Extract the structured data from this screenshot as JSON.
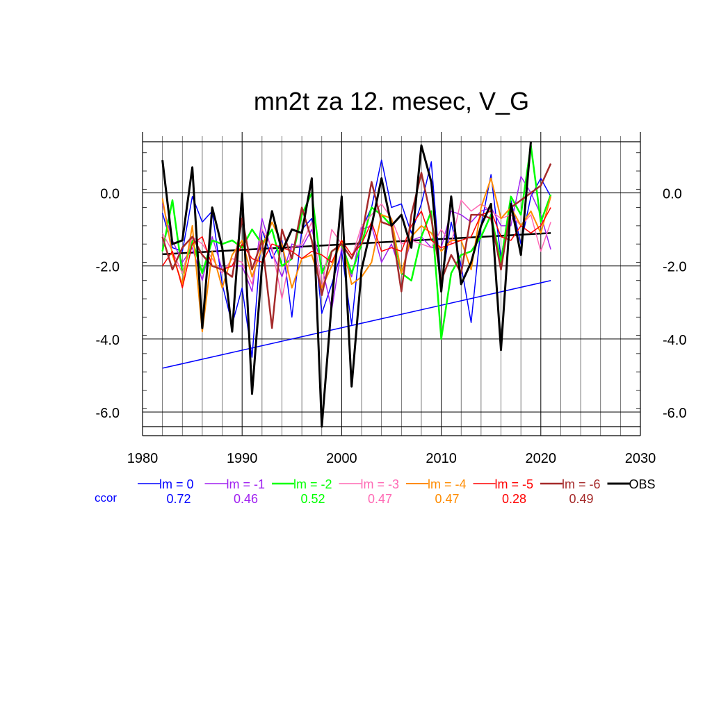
{
  "chart_data": {
    "type": "line",
    "title": "mn2t za 12. mesec, V_G",
    "xlabel": "",
    "ylabel": "",
    "xlim": [
      1980,
      2030
    ],
    "ylim": [
      -6.4,
      1.4
    ],
    "x_ticks": [
      1980,
      1990,
      2000,
      2010,
      2020,
      2030
    ],
    "x_tick_labels": [
      "1980",
      "1990",
      "2000",
      "2010",
      "2020",
      "2030"
    ],
    "y_ticks": [
      0,
      -2,
      -4,
      -6
    ],
    "y_tick_labels": [
      "0.0",
      "-2.0",
      "-4.0",
      "-6.0"
    ],
    "grid": "vertical minor lines at every year, horizontal at major ticks",
    "legend_position": "bottom",
    "ccor_label": "ccor",
    "x": [
      1982,
      1983,
      1984,
      1985,
      1986,
      1987,
      1988,
      1989,
      1990,
      1991,
      1992,
      1993,
      1994,
      1995,
      1996,
      1997,
      1998,
      1999,
      2000,
      2001,
      2002,
      2003,
      2004,
      2005,
      2006,
      2007,
      2008,
      2009,
      2010,
      2011,
      2012,
      2013,
      2014,
      2015,
      2016,
      2017,
      2018,
      2019,
      2020,
      2021
    ],
    "series": [
      {
        "name": "lm = 0",
        "color": "#0000ff",
        "width": 1.5,
        "ccor": "0.72",
        "values": [
          -0.55,
          -1.5,
          -1.6,
          -0.1,
          -0.8,
          -0.5,
          -2.5,
          -3.6,
          -2.6,
          -4.5,
          -1.0,
          -1.8,
          -1.3,
          -3.4,
          -1.0,
          -0.7,
          -3.3,
          -2.5,
          -1.6,
          -3.6,
          -1.0,
          -0.4,
          0.9,
          -0.4,
          -0.3,
          -1.1,
          -0.3,
          0.85,
          -2.5,
          -0.8,
          -2.0,
          -3.55,
          -0.9,
          0.5,
          -1.8,
          -0.2,
          -1.4,
          -0.1,
          0.4,
          -0.1
        ]
      },
      {
        "name": "lm = -1",
        "color": "#a020f0",
        "width": 1.5,
        "ccor": "0.46",
        "values": [
          -0.3,
          -1.3,
          -1.9,
          -1.5,
          -2.4,
          -1.2,
          -2.1,
          -2.0,
          -2.0,
          -2.7,
          -0.7,
          -1.6,
          -2.3,
          -1.4,
          -1.5,
          -1.0,
          -2.0,
          -3.2,
          -1.5,
          -2.3,
          -1.0,
          -0.9,
          -1.9,
          -1.4,
          -2.2,
          -1.3,
          -1.2,
          -1.5,
          -1.5,
          -0.5,
          -0.6,
          -0.8,
          -0.5,
          -0.4,
          -0.9,
          -0.9,
          0.45,
          0.0,
          -0.6,
          -1.55
        ]
      },
      {
        "name": "lm = -2",
        "color": "#00ff00",
        "width": 2.5,
        "ccor": "0.52",
        "values": [
          -1.6,
          -0.2,
          -2.2,
          -1.3,
          -2.2,
          -1.3,
          -1.4,
          -1.3,
          -1.5,
          -1.0,
          -1.4,
          -1.0,
          -2.0,
          -1.8,
          -0.6,
          0.0,
          -2.2,
          -1.6,
          -1.4,
          -2.2,
          -1.4,
          -0.4,
          -0.6,
          -0.9,
          -2.2,
          -2.4,
          -1.2,
          -0.5,
          -4.0,
          -2.2,
          -1.7,
          -1.6,
          -1.2,
          -0.6,
          -1.9,
          -0.1,
          -0.6,
          1.3,
          -0.8,
          -0.05
        ]
      },
      {
        "name": "lm = -3",
        "color": "#ff69b4",
        "width": 1.5,
        "ccor": "0.47",
        "values": [
          -1.1,
          -1.6,
          -2.2,
          -1.2,
          -1.4,
          -1.8,
          -2.2,
          -1.8,
          -1.9,
          -2.5,
          -1.0,
          -1.5,
          -2.9,
          -1.5,
          -1.4,
          -0.8,
          -2.6,
          -1.0,
          -1.4,
          -1.8,
          -0.9,
          -0.6,
          -0.3,
          -0.7,
          -1.4,
          -1.3,
          -1.4,
          -1.5,
          -1.0,
          -1.4,
          -0.2,
          -0.5,
          -0.3,
          -0.5,
          -0.7,
          -0.6,
          -0.9,
          -0.6,
          -1.6,
          -0.8
        ]
      },
      {
        "name": "lm = -4",
        "color": "#ff8c00",
        "width": 2.0,
        "ccor": "0.47",
        "values": [
          -0.15,
          -1.7,
          -2.5,
          -0.9,
          -3.8,
          -1.6,
          -2.6,
          -1.7,
          -1.3,
          -2.3,
          -1.5,
          -0.8,
          -1.4,
          -2.6,
          -1.8,
          -1.7,
          -2.6,
          -2.0,
          -1.3,
          -2.5,
          -2.3,
          -1.9,
          -0.6,
          -0.7,
          -2.2,
          -1.2,
          -0.9,
          -1.1,
          -1.6,
          -1.3,
          -1.3,
          -2.1,
          -0.4,
          0.4,
          -0.7,
          -0.4,
          -0.9,
          -0.5,
          -1.1,
          -0.1
        ]
      },
      {
        "name": "lm = -5",
        "color": "#ff0000",
        "width": 1.5,
        "ccor": "0.28",
        "values": [
          -2.0,
          -1.6,
          -2.6,
          -1.4,
          -1.2,
          -2.0,
          -2.1,
          -2.0,
          -1.4,
          -1.8,
          -1.9,
          -1.4,
          -1.5,
          -1.6,
          -1.8,
          -1.6,
          -1.7,
          -1.9,
          -1.3,
          -1.7,
          -1.4,
          -0.8,
          -1.6,
          -1.5,
          -1.6,
          -0.9,
          -0.5,
          -1.3,
          -1.5,
          -1.4,
          -1.3,
          -1.2,
          -0.6,
          -0.5,
          -1.2,
          -1.3,
          -0.9,
          -1.1,
          -0.9,
          -0.4
        ]
      },
      {
        "name": "lm = -6",
        "color": "#a52a2a",
        "width": 2.5,
        "ccor": "0.49",
        "values": [
          -1.2,
          -2.1,
          -1.5,
          -1.2,
          -1.7,
          -2.0,
          -2.1,
          -2.3,
          -0.7,
          -2.1,
          -1.3,
          -3.7,
          -1.0,
          -1.8,
          -0.4,
          -1.3,
          -2.8,
          -1.6,
          -1.4,
          -1.8,
          -1.2,
          0.3,
          -0.8,
          -0.9,
          -2.7,
          -0.6,
          0.55,
          -0.7,
          -2.4,
          -1.7,
          -2.2,
          -0.6,
          -0.6,
          -0.7,
          -2.1,
          -0.4,
          -0.2,
          0.0,
          0.2,
          0.8
        ]
      },
      {
        "name": "OBS",
        "color": "#000000",
        "width": 3.0,
        "ccor": "",
        "values": [
          0.9,
          -1.4,
          -1.3,
          0.7,
          -3.7,
          -0.4,
          -1.5,
          -3.8,
          0.0,
          -5.5,
          -2.0,
          -0.5,
          -1.6,
          -1.0,
          -1.1,
          0.4,
          -6.4,
          -3.0,
          -0.1,
          -5.3,
          -2.1,
          -0.9,
          0.4,
          -0.9,
          -0.6,
          -1.5,
          1.3,
          0.3,
          -2.7,
          -0.1,
          -2.5,
          -1.9,
          -0.9,
          -0.3,
          -4.3,
          -0.3,
          -1.7,
          1.4,
          null,
          null
        ]
      }
    ],
    "trend_lines": [
      {
        "color": "#0000ff",
        "width": 1.5,
        "x": [
          1982,
          2021
        ],
        "values": [
          -4.8,
          -2.4
        ]
      },
      {
        "color": "#000000",
        "width": 2.5,
        "x": [
          1982,
          2021
        ],
        "values": [
          -1.68,
          -1.1
        ]
      }
    ]
  }
}
